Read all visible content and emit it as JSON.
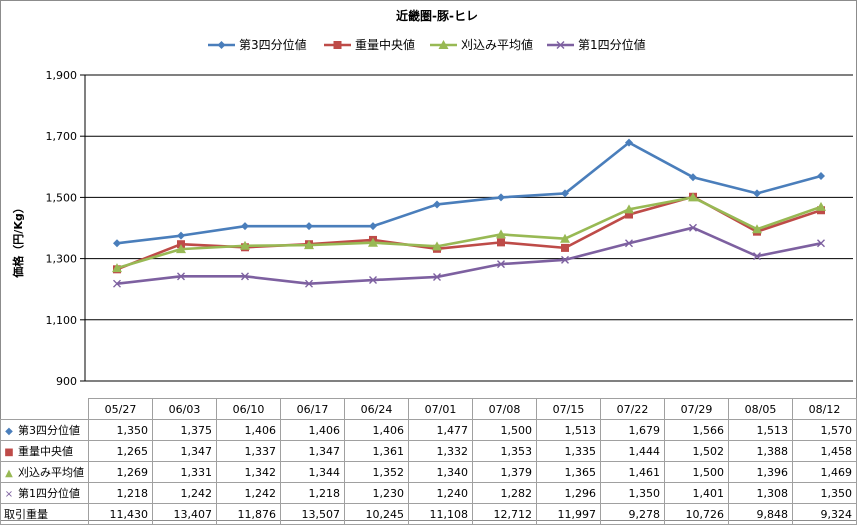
{
  "chart_data": {
    "type": "line",
    "title": "近畿圏-豚-ヒレ",
    "ylabel": "価格（円/Kg）",
    "xlabel": "",
    "ylim": [
      900,
      1900
    ],
    "yticks": [
      "900",
      "1,100",
      "1,300",
      "1,500",
      "1,700",
      "1,900"
    ],
    "yticks_values": [
      900,
      1100,
      1300,
      1500,
      1700,
      1900
    ],
    "grid": true,
    "legend_position": "top",
    "categories": [
      "05/27",
      "06/03",
      "06/10",
      "06/17",
      "06/24",
      "07/01",
      "07/08",
      "07/15",
      "07/22",
      "07/29",
      "08/05",
      "08/12"
    ],
    "series": [
      {
        "name": "第3四分位値",
        "color": "#4A7EBB",
        "marker": "diamond",
        "values": [
          1350,
          1375,
          1406,
          1406,
          1406,
          1477,
          1500,
          1513,
          1679,
          1566,
          1513,
          1570
        ],
        "display": [
          "1,350",
          "1,375",
          "1,406",
          "1,406",
          "1,406",
          "1,477",
          "1,500",
          "1,513",
          "1,679",
          "1,566",
          "1,513",
          "1,570"
        ]
      },
      {
        "name": "重量中央値",
        "color": "#BE4B48",
        "marker": "square",
        "values": [
          1265,
          1347,
          1337,
          1347,
          1361,
          1332,
          1353,
          1335,
          1444,
          1502,
          1388,
          1458
        ],
        "display": [
          "1,265",
          "1,347",
          "1,337",
          "1,347",
          "1,361",
          "1,332",
          "1,353",
          "1,335",
          "1,444",
          "1,502",
          "1,388",
          "1,458"
        ]
      },
      {
        "name": "刈込み平均値",
        "color": "#98B954",
        "marker": "triangle",
        "values": [
          1269,
          1331,
          1342,
          1344,
          1352,
          1340,
          1379,
          1365,
          1461,
          1500,
          1396,
          1469
        ],
        "display": [
          "1,269",
          "1,331",
          "1,342",
          "1,344",
          "1,352",
          "1,340",
          "1,379",
          "1,365",
          "1,461",
          "1,500",
          "1,396",
          "1,469"
        ]
      },
      {
        "name": "第1四分位値",
        "color": "#7D60A0",
        "marker": "x",
        "values": [
          1218,
          1242,
          1242,
          1218,
          1230,
          1240,
          1282,
          1296,
          1350,
          1401,
          1308,
          1350
        ],
        "display": [
          "1,218",
          "1,242",
          "1,242",
          "1,218",
          "1,230",
          "1,240",
          "1,282",
          "1,296",
          "1,350",
          "1,401",
          "1,308",
          "1,350"
        ]
      }
    ],
    "extra_row": {
      "name": "取引重量",
      "display": [
        "11,430",
        "13,407",
        "11,876",
        "13,507",
        "10,245",
        "11,108",
        "12,712",
        "11,997",
        "9,278",
        "10,726",
        "9,848",
        "9,324"
      ]
    }
  }
}
